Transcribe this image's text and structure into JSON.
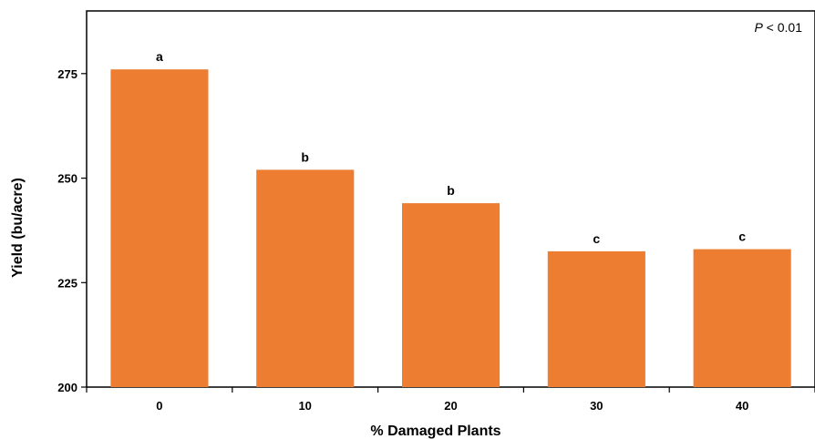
{
  "chart_data": {
    "type": "bar",
    "categories": [
      "0",
      "10",
      "20",
      "30",
      "40"
    ],
    "values": [
      276,
      252,
      244,
      232.5,
      233
    ],
    "data_labels": [
      "a",
      "b",
      "b",
      "c",
      "c"
    ],
    "xlabel": "% Damaged Plants",
    "ylabel": "Yield (bu/acre)",
    "ylim": [
      200,
      290
    ],
    "yticks": [
      200,
      225,
      250,
      275
    ],
    "annotation": {
      "italic": "P",
      "rest": " < 0.01"
    },
    "bar_color": "#ED7D31",
    "grid": false,
    "legend": "none"
  }
}
